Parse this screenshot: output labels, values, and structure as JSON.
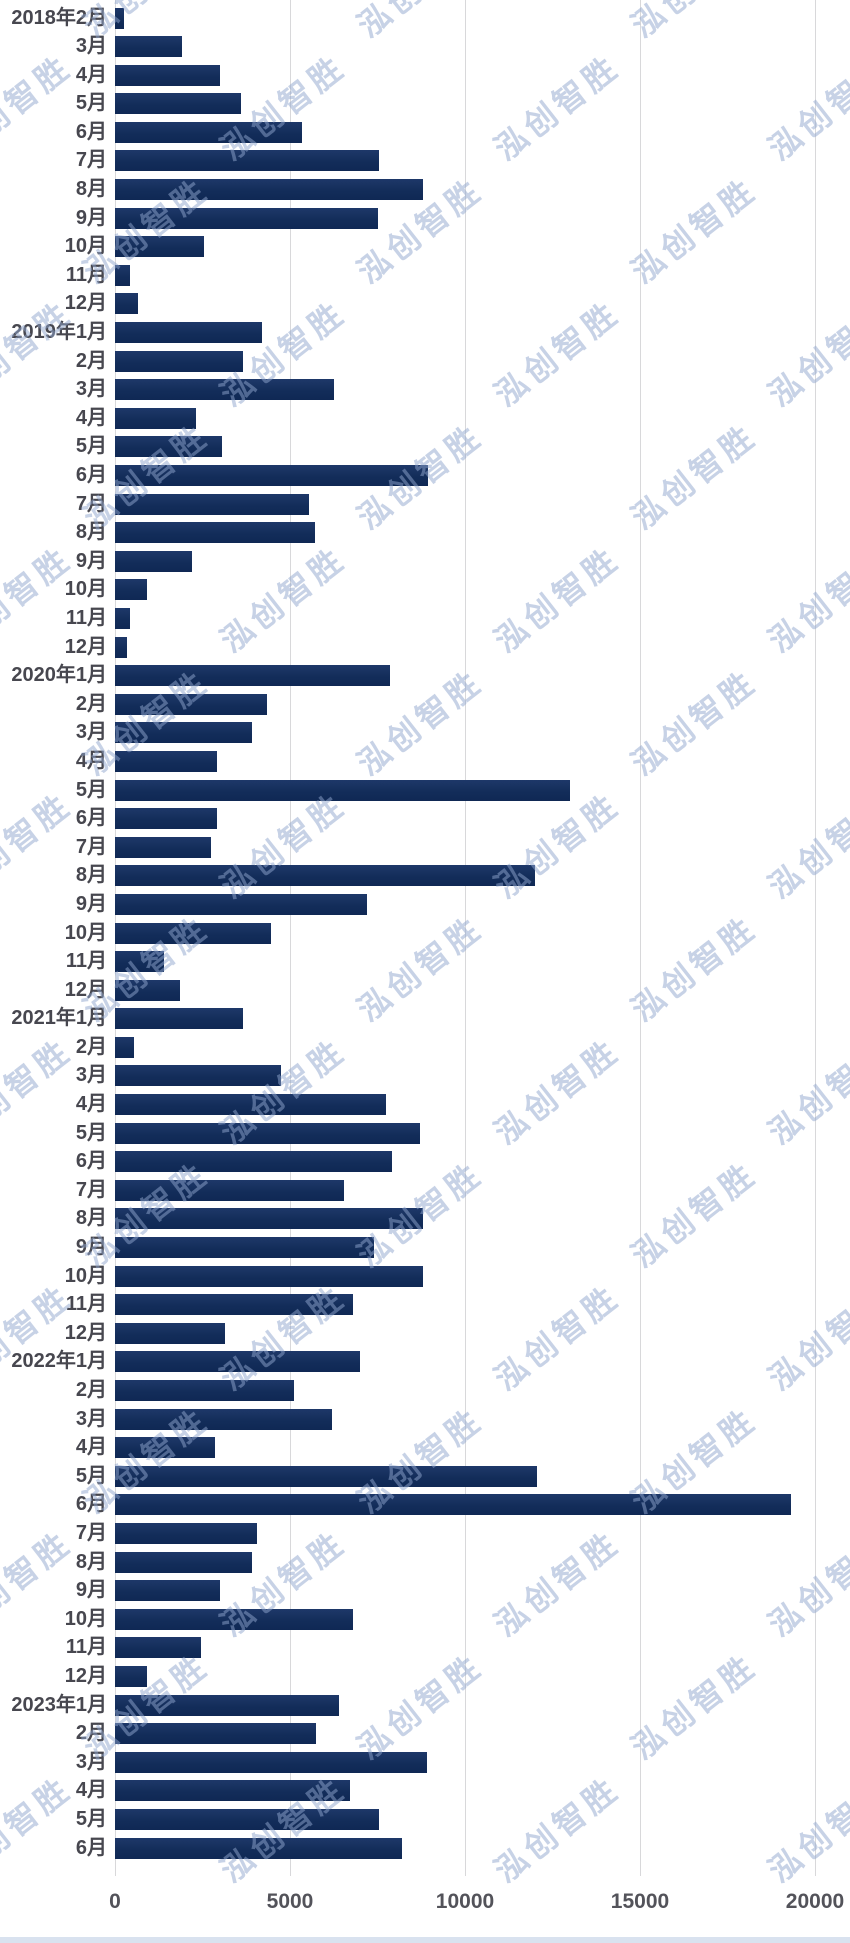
{
  "watermark_text": "泓创智胜",
  "colors": {
    "bar": "#132d5a",
    "bar_top": "#1e3869",
    "grid": "#d8d8da",
    "label": "#47474f",
    "tick_label": "#53535a",
    "watermark": "rgba(144,166,205,0.5)",
    "bottom_strip": "#d9e2ef"
  },
  "chart_data": {
    "type": "bar",
    "orientation": "horizontal",
    "title": "",
    "xlabel": "",
    "ylabel": "",
    "xlim": [
      0,
      20000
    ],
    "grid": true,
    "xticks": [
      "0",
      "5000",
      "10000",
      "15000",
      "20000"
    ],
    "xtick_values": [
      0,
      5000,
      10000,
      15000,
      20000
    ],
    "categories": [
      "2018年2月",
      "3月",
      "4月",
      "5月",
      "6月",
      "7月",
      "8月",
      "9月",
      "10月",
      "11月",
      "12月",
      "2019年1月",
      "2月",
      "3月",
      "4月",
      "5月",
      "6月",
      "7月",
      "8月",
      "9月",
      "10月",
      "11月",
      "12月",
      "2020年1月",
      "2月",
      "3月",
      "4月",
      "5月",
      "6月",
      "7月",
      "8月",
      "9月",
      "10月",
      "11月",
      "12月",
      "2021年1月",
      "2月",
      "3月",
      "4月",
      "5月",
      "6月",
      "7月",
      "8月",
      "9月",
      "10月",
      "11月",
      "12月",
      "2022年1月",
      "2月",
      "3月",
      "4月",
      "5月",
      "6月",
      "7月",
      "8月",
      "9月",
      "10月",
      "11月",
      "12月",
      "2023年1月",
      "2月",
      "3月",
      "4月",
      "5月",
      "6月"
    ],
    "values": [
      250,
      1900,
      3000,
      3600,
      5350,
      7550,
      8800,
      7500,
      2550,
      430,
      650,
      4200,
      3650,
      6250,
      2300,
      3050,
      8950,
      5550,
      5700,
      2200,
      900,
      420,
      330,
      7850,
      4350,
      3900,
      2900,
      13000,
      2900,
      2750,
      12000,
      7200,
      4450,
      1400,
      1850,
      3650,
      550,
      4750,
      7750,
      8700,
      7900,
      6550,
      8800,
      7400,
      8800,
      6800,
      3150,
      7000,
      5100,
      6200,
      2850,
      12050,
      19300,
      4050,
      3900,
      3000,
      6800,
      2450,
      900,
      6400,
      5750,
      8900,
      6700,
      7550,
      8200
    ]
  }
}
